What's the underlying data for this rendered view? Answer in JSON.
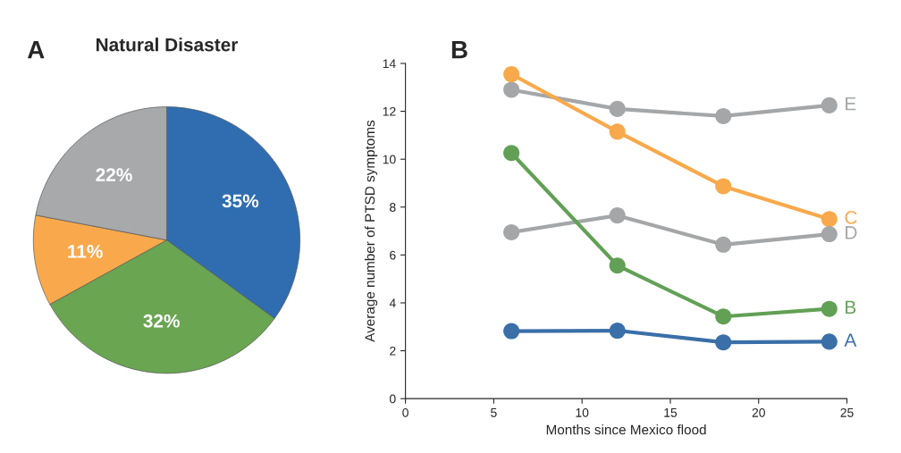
{
  "chart_data": [
    {
      "type": "pie",
      "title": "Natural Disaster",
      "annotations": [
        "A"
      ],
      "categories": [
        null,
        null,
        null,
        null
      ],
      "values": [
        35,
        32,
        11,
        22
      ],
      "colors": [
        "#2f6db0",
        "#6aa552",
        "#f9a94b",
        "#a7a9ab"
      ],
      "value_labels": [
        "35%",
        "32%",
        "11%",
        "22%"
      ]
    },
    {
      "type": "line",
      "annotations": [
        "B"
      ],
      "xlabel": "Months since Mexico flood",
      "ylabel": "Average number of PTSD symptoms",
      "x": [
        6,
        12,
        18,
        24
      ],
      "xlim": [
        0,
        25
      ],
      "xticks": [
        0,
        5,
        10,
        15,
        20,
        25
      ],
      "ylim": [
        0,
        14
      ],
      "yticks": [
        0,
        2,
        4,
        6,
        8,
        10,
        12,
        14
      ],
      "grid": false,
      "legend": false,
      "marker": "circle",
      "line_style": "solid",
      "series": [
        {
          "name": "E",
          "color": "#a4a6a8",
          "values": [
            12.9,
            12.1,
            11.8,
            12.25
          ]
        },
        {
          "name": "C",
          "color": "#f8a94b",
          "values": [
            13.55,
            11.15,
            8.87,
            7.5
          ]
        },
        {
          "name": "D",
          "color": "#a4a6a8",
          "values": [
            6.95,
            7.65,
            6.43,
            6.87
          ]
        },
        {
          "name": "B",
          "color": "#62a055",
          "values": [
            10.26,
            5.56,
            3.43,
            3.75
          ]
        },
        {
          "name": "A",
          "color": "#3a6fa8",
          "values": [
            2.82,
            2.84,
            2.35,
            2.38
          ]
        }
      ]
    }
  ]
}
